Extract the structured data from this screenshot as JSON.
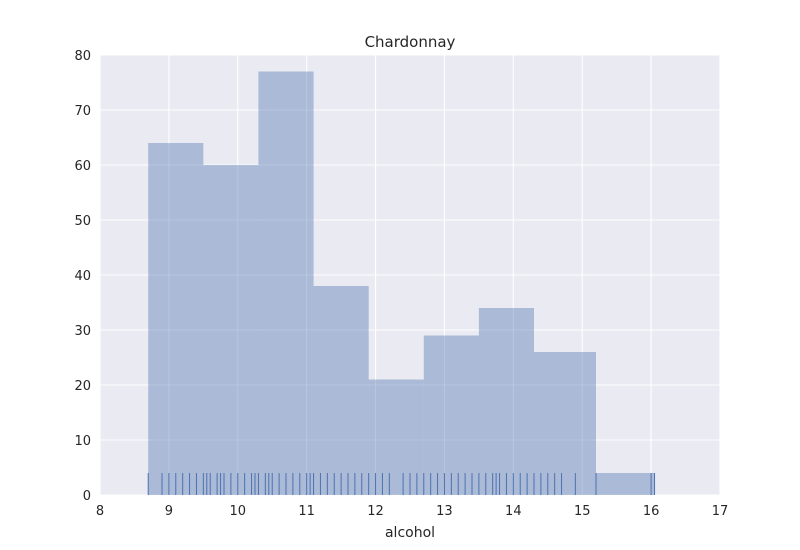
{
  "chart_data": {
    "type": "bar",
    "title": "Chardonnay",
    "xlabel": "alcohol",
    "ylabel": "",
    "xlim": [
      8,
      17
    ],
    "ylim": [
      0,
      80
    ],
    "xticks": [
      8,
      9,
      10,
      11,
      12,
      13,
      14,
      15,
      16,
      17
    ],
    "yticks": [
      0,
      10,
      20,
      30,
      40,
      50,
      60,
      70,
      80
    ],
    "grid": true,
    "colors": {
      "background": "#eaeaf2",
      "grid": "#ffffff",
      "bar_fill": "#4c72b0",
      "rug": "#4c72b0"
    },
    "bins": [
      {
        "start": 8.7,
        "end": 9.5,
        "count": 64
      },
      {
        "start": 9.5,
        "end": 10.3,
        "count": 60
      },
      {
        "start": 10.3,
        "end": 11.1,
        "count": 77
      },
      {
        "start": 11.1,
        "end": 11.9,
        "count": 38
      },
      {
        "start": 11.9,
        "end": 12.7,
        "count": 21
      },
      {
        "start": 12.7,
        "end": 13.5,
        "count": 29
      },
      {
        "start": 13.5,
        "end": 14.3,
        "count": 34
      },
      {
        "start": 14.3,
        "end": 15.2,
        "count": 26
      },
      {
        "start": 15.2,
        "end": 16.05,
        "count": 4
      }
    ],
    "rug_values": [
      8.7,
      8.9,
      9.0,
      9.1,
      9.2,
      9.3,
      9.4,
      9.5,
      9.55,
      9.6,
      9.7,
      9.75,
      9.8,
      9.9,
      10.0,
      10.1,
      10.2,
      10.25,
      10.3,
      10.4,
      10.45,
      10.5,
      10.6,
      10.7,
      10.8,
      10.9,
      11.0,
      11.05,
      11.1,
      11.2,
      11.3,
      11.4,
      11.5,
      11.6,
      11.7,
      11.8,
      11.9,
      12.0,
      12.1,
      12.2,
      12.4,
      12.5,
      12.6,
      12.7,
      12.8,
      12.9,
      13.0,
      13.1,
      13.2,
      13.3,
      13.4,
      13.5,
      13.6,
      13.7,
      13.75,
      13.8,
      13.9,
      14.0,
      14.1,
      14.2,
      14.3,
      14.4,
      14.5,
      14.6,
      14.7,
      14.9,
      15.2,
      16.0,
      16.05
    ]
  }
}
